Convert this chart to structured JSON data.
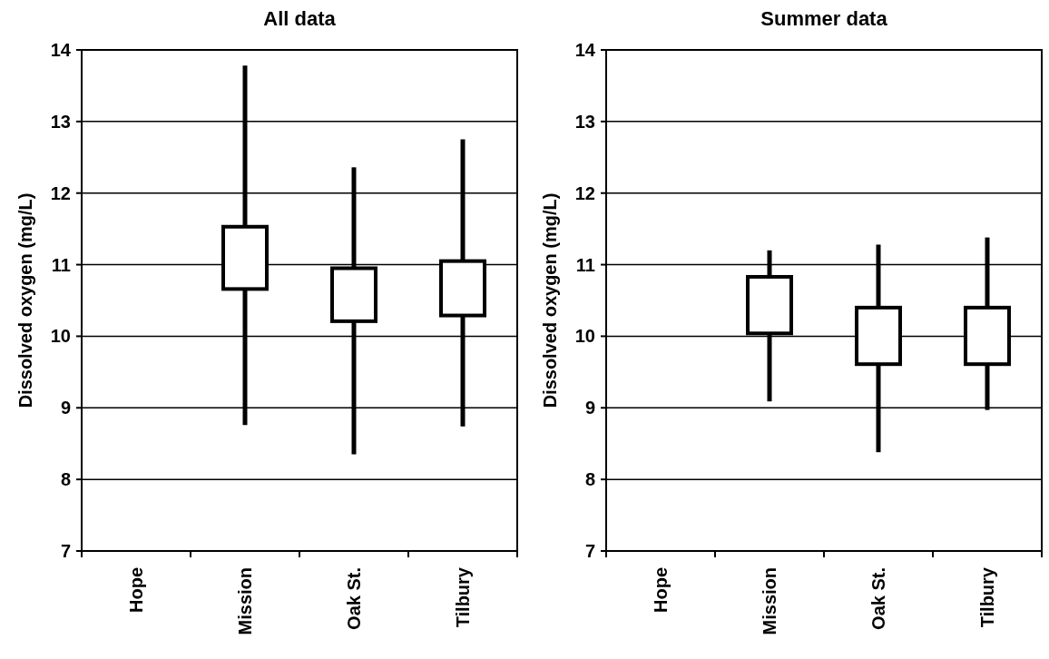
{
  "chart_data": [
    {
      "type": "box",
      "title": "All data",
      "ylabel": "Dissolved oxygen (mg/L)",
      "categories": [
        "Hope",
        "Mission",
        "Oak St.",
        "Tilbury"
      ],
      "boxes": [
        null,
        {
          "low": 8.76,
          "q1": 10.66,
          "median": null,
          "q3": 11.53,
          "high": 13.78
        },
        {
          "low": 8.35,
          "q1": 10.21,
          "median": null,
          "q3": 10.95,
          "high": 12.36
        },
        {
          "low": 8.74,
          "q1": 10.29,
          "median": null,
          "q3": 11.05,
          "high": 12.75
        }
      ],
      "color": "#000000",
      "ylim": [
        7,
        14
      ],
      "yticks": [
        7,
        8,
        9,
        10,
        11,
        12,
        13,
        14
      ],
      "grid": "y"
    },
    {
      "type": "box",
      "title": "Summer data",
      "ylabel": "Dissolved oxygen (mg/L)",
      "categories": [
        "Hope",
        "Mission",
        "Oak St.",
        "Tilbury"
      ],
      "boxes": [
        null,
        {
          "low": 9.09,
          "q1": 10.04,
          "median": null,
          "q3": 10.83,
          "high": 11.2
        },
        {
          "low": 8.38,
          "q1": 9.61,
          "median": null,
          "q3": 10.4,
          "high": 11.28
        },
        {
          "low": 8.97,
          "q1": 9.61,
          "median": null,
          "q3": 10.4,
          "high": 11.38
        }
      ],
      "color": "#000000",
      "ylim": [
        7,
        14
      ],
      "yticks": [
        7,
        8,
        9,
        10,
        11,
        12,
        13,
        14
      ],
      "grid": "y"
    }
  ]
}
